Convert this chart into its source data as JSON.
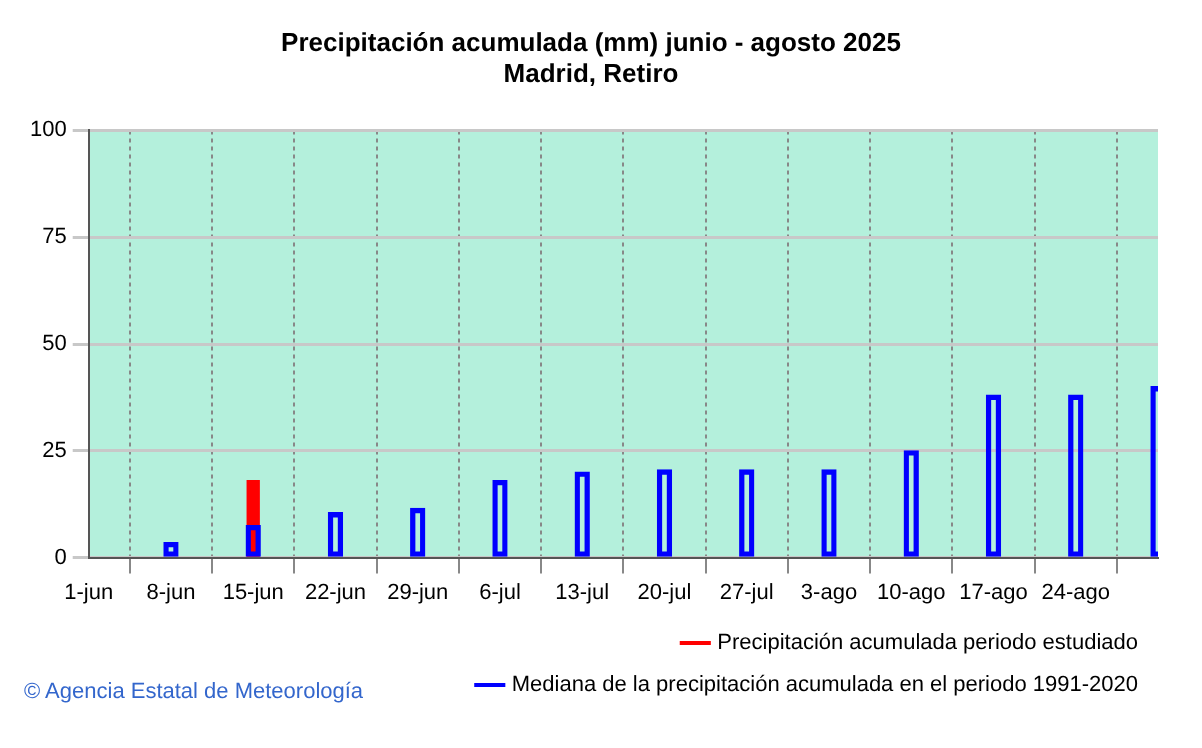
{
  "chart_data": {
    "type": "bar",
    "title": "Precipitación acumulada (mm) junio - agosto 2025",
    "subtitle": "Madrid, Retiro",
    "categories": [
      "1-jun",
      "8-jun",
      "15-jun",
      "22-jun",
      "29-jun",
      "6-jul",
      "13-jul",
      "20-jul",
      "27-jul",
      "3-ago",
      "10-ago",
      "17-ago",
      "24-ago",
      null
    ],
    "series": [
      {
        "name": "Precipitación acumulada periodo estudiado",
        "color": "#ff0000",
        "values": [
          null,
          null,
          18,
          null,
          null,
          null,
          null,
          null,
          null,
          null,
          null,
          null,
          null,
          null
        ]
      },
      {
        "name": "Mediana de la precipitación acumulada en el periodo 1991-2020",
        "color": "#0000ff",
        "values": [
          null,
          3.5,
          7.5,
          10.5,
          11.5,
          18,
          20,
          20.5,
          20.5,
          20.5,
          25,
          38,
          38,
          40
        ]
      }
    ],
    "ylim": [
      0,
      100
    ],
    "yticks": [
      0,
      25,
      50,
      75,
      100
    ],
    "grid": true,
    "legend": "bottom right",
    "annotations": [
      "© Agencia Estatal de Meteorología"
    ]
  }
}
